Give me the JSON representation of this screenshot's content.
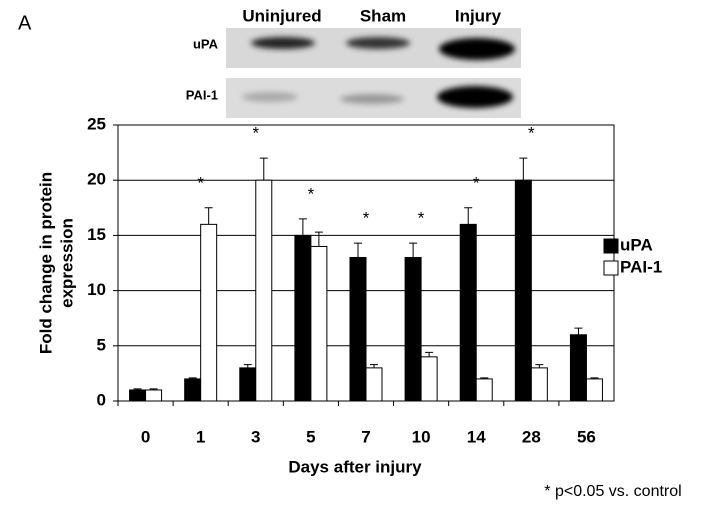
{
  "panel_label": "A",
  "blot": {
    "columns": [
      "Uninjured",
      "Sham",
      "Injury"
    ],
    "rows": [
      "uPA",
      "PAI-1"
    ]
  },
  "chart_data": {
    "type": "bar",
    "ylabel": [
      "Fold change in protein",
      "expression"
    ],
    "xlabel": "Days after injury",
    "categories": [
      "0",
      "1",
      "3",
      "5",
      "7",
      "10",
      "14",
      "28",
      "56"
    ],
    "series": [
      {
        "name": "uPA",
        "color": "#000000",
        "values": [
          1,
          2,
          3,
          15,
          13,
          13,
          16,
          20,
          6
        ],
        "errors": [
          0.1,
          0.1,
          0.3,
          1.5,
          1.3,
          1.3,
          1.5,
          2,
          0.6
        ]
      },
      {
        "name": "PAI-1",
        "color": "#ffffff",
        "values": [
          1,
          16,
          20,
          14,
          3,
          4,
          2,
          3,
          2
        ],
        "errors": [
          0.1,
          1.5,
          2,
          1.3,
          0.3,
          0.4,
          0.1,
          0.3,
          0.1
        ]
      }
    ],
    "significance": [
      null,
      "*",
      "*",
      "*",
      "*",
      "*",
      "*",
      "*",
      null
    ],
    "footnote": "* p<0.05 vs. control",
    "ylim": [
      0,
      25
    ],
    "yticks": [
      0,
      5,
      10,
      15,
      20,
      25
    ],
    "grid": true
  }
}
